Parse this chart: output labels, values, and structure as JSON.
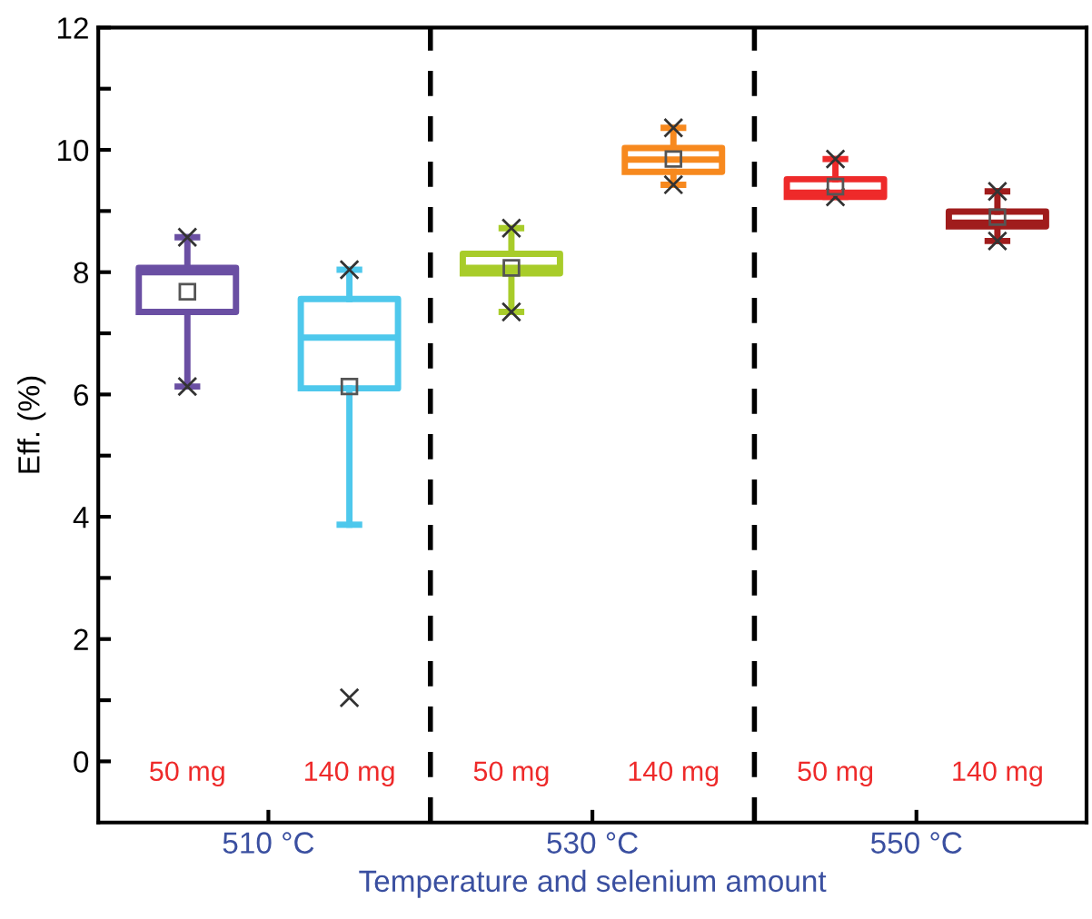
{
  "chart_data": {
    "type": "box",
    "ylabel": "Eff. (%)",
    "xlabel": "Temperature and selenium amount",
    "categories": [
      "50 mg",
      "140 mg",
      "50 mg",
      "140 mg",
      "50 mg",
      "140 mg"
    ],
    "colors": [
      "#6a4fa3",
      "#4ec8ec",
      "#a8cc2a",
      "#f7891e",
      "#ee2a2a",
      "#a01c1c"
    ],
    "boxes": [
      {
        "low": 6.13,
        "q1": 7.35,
        "median": 8.0,
        "q3": 8.07,
        "high": 8.57,
        "mean": 7.68,
        "outliers": [
          6.13,
          8.57
        ]
      },
      {
        "low": 3.87,
        "q1": 6.1,
        "median": 6.93,
        "q3": 7.56,
        "high": 8.04,
        "mean": 6.13,
        "outliers": [
          1.04,
          8.04
        ]
      },
      {
        "low": 7.35,
        "q1": 7.98,
        "median": 8.07,
        "q3": 8.3,
        "high": 8.72,
        "mean": 8.07,
        "outliers": [
          7.35,
          8.72
        ]
      },
      {
        "low": 9.43,
        "q1": 9.64,
        "median": 9.84,
        "q3": 10.03,
        "high": 10.36,
        "mean": 9.85,
        "outliers": [
          9.43,
          10.36
        ]
      },
      {
        "low": 9.23,
        "q1": 9.23,
        "median": 9.3,
        "q3": 9.52,
        "high": 9.85,
        "mean": 9.4,
        "outliers": [
          9.23,
          9.85
        ]
      },
      {
        "low": 8.51,
        "q1": 8.75,
        "median": 8.81,
        "q3": 8.99,
        "high": 9.32,
        "mean": 8.9,
        "outliers": [
          8.51,
          9.32
        ]
      }
    ],
    "annotations": [
      "510 °C",
      "530 °C",
      "550 °C"
    ],
    "ylim": [
      -1,
      12
    ],
    "yticks": [
      0,
      {
        "value": 1,
        "label": null
      },
      2,
      {
        "value": 3,
        "label": null
      },
      4,
      {
        "value": 5,
        "label": null
      },
      6,
      {
        "value": 7,
        "label": null
      },
      8,
      {
        "value": 9,
        "label": null
      },
      10,
      {
        "value": 11,
        "label": null
      },
      12
    ],
    "grid": false
  }
}
